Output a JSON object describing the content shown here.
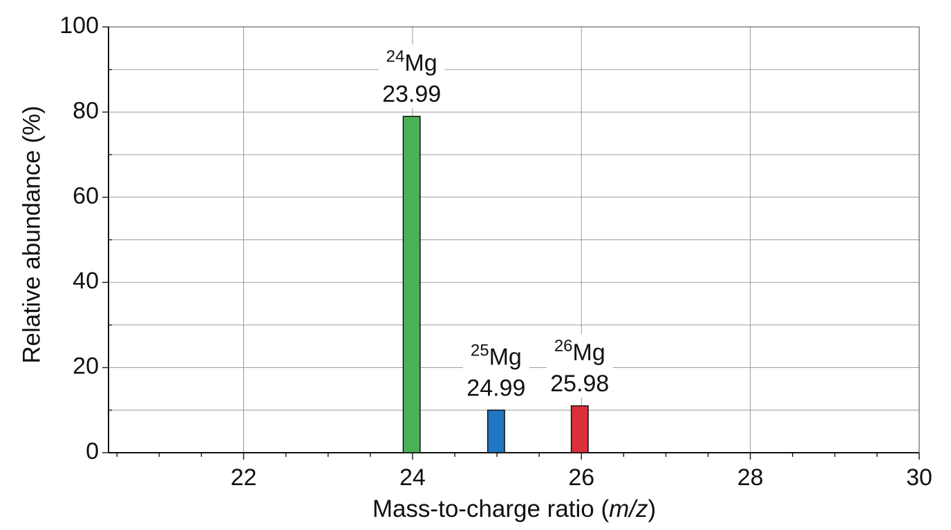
{
  "chart_data": {
    "type": "bar",
    "x": [
      23.99,
      24.99,
      25.98
    ],
    "values": [
      79,
      10,
      11
    ],
    "colors": [
      "#4ab157",
      "#1f78c1",
      "#dc2f39"
    ],
    "isotope_labels": [
      {
        "mass_number": "24",
        "symbol": "Mg"
      },
      {
        "mass_number": "25",
        "symbol": "Mg"
      },
      {
        "mass_number": "26",
        "symbol": "Mg"
      }
    ],
    "xlabel": [
      "Mass-to-charge ratio (",
      "m/z",
      ")"
    ],
    "ylabel": "Relative abundance (%)",
    "xlim": [
      20.4,
      30
    ],
    "ylim": [
      0,
      100
    ],
    "xticks": [
      22,
      24,
      26,
      28,
      30
    ],
    "xminorticks": [
      20.5,
      21,
      21.5,
      22.5,
      23,
      23.5,
      24.5,
      25,
      25.5,
      26.5,
      27,
      27.5,
      28.5,
      29,
      29.5
    ],
    "yticks": [
      0,
      20,
      40,
      60,
      80,
      100
    ],
    "yminorticks": [
      10,
      30,
      50,
      70,
      90
    ],
    "bar_width": 0.2,
    "grid": true
  }
}
